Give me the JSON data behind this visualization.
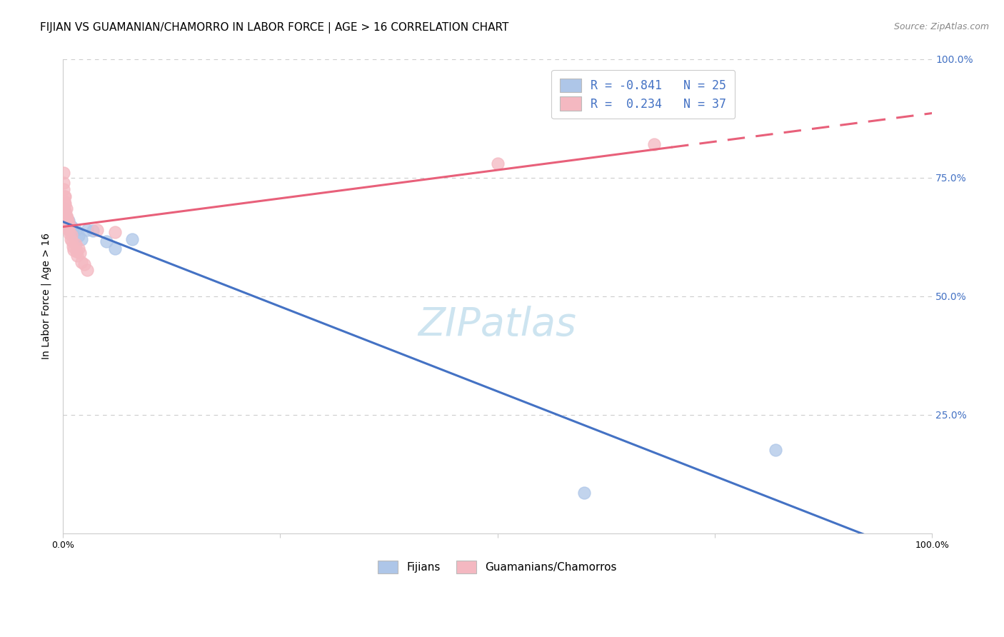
{
  "title": "FIJIAN VS GUAMANIAN/CHAMORRO IN LABOR FORCE | AGE > 16 CORRELATION CHART",
  "source": "Source: ZipAtlas.com",
  "ylabel": "In Labor Force | Age > 16",
  "watermark": "ZIPatlas",
  "fijian_color": "#aec6e8",
  "guamanian_color": "#f4b8c1",
  "fijian_line_color": "#4472c4",
  "guamanian_line_color": "#e8607a",
  "fijian_scatter": [
    [
      0.001,
      0.685
    ],
    [
      0.001,
      0.675
    ],
    [
      0.002,
      0.68
    ],
    [
      0.002,
      0.665
    ],
    [
      0.002,
      0.66
    ],
    [
      0.003,
      0.67
    ],
    [
      0.003,
      0.655
    ],
    [
      0.004,
      0.66
    ],
    [
      0.004,
      0.648
    ],
    [
      0.005,
      0.655
    ],
    [
      0.006,
      0.65
    ],
    [
      0.007,
      0.66
    ],
    [
      0.008,
      0.64
    ],
    [
      0.01,
      0.648
    ],
    [
      0.012,
      0.635
    ],
    [
      0.015,
      0.64
    ],
    [
      0.018,
      0.628
    ],
    [
      0.022,
      0.62
    ],
    [
      0.028,
      0.64
    ],
    [
      0.035,
      0.638
    ],
    [
      0.05,
      0.615
    ],
    [
      0.06,
      0.6
    ],
    [
      0.08,
      0.62
    ],
    [
      0.6,
      0.085
    ],
    [
      0.82,
      0.175
    ]
  ],
  "guamanian_scatter": [
    [
      0.001,
      0.76
    ],
    [
      0.001,
      0.74
    ],
    [
      0.001,
      0.725
    ],
    [
      0.002,
      0.71
    ],
    [
      0.002,
      0.7
    ],
    [
      0.002,
      0.695
    ],
    [
      0.002,
      0.685
    ],
    [
      0.003,
      0.71
    ],
    [
      0.003,
      0.695
    ],
    [
      0.003,
      0.68
    ],
    [
      0.003,
      0.67
    ],
    [
      0.004,
      0.685
    ],
    [
      0.004,
      0.67
    ],
    [
      0.005,
      0.665
    ],
    [
      0.005,
      0.655
    ],
    [
      0.006,
      0.66
    ],
    [
      0.006,
      0.645
    ],
    [
      0.007,
      0.64
    ],
    [
      0.008,
      0.65
    ],
    [
      0.008,
      0.632
    ],
    [
      0.009,
      0.62
    ],
    [
      0.01,
      0.63
    ],
    [
      0.011,
      0.615
    ],
    [
      0.012,
      0.605
    ],
    [
      0.013,
      0.598
    ],
    [
      0.015,
      0.61
    ],
    [
      0.016,
      0.595
    ],
    [
      0.017,
      0.585
    ],
    [
      0.018,
      0.6
    ],
    [
      0.02,
      0.592
    ],
    [
      0.022,
      0.572
    ],
    [
      0.025,
      0.568
    ],
    [
      0.028,
      0.555
    ],
    [
      0.04,
      0.64
    ],
    [
      0.06,
      0.635
    ],
    [
      0.5,
      0.78
    ],
    [
      0.68,
      0.82
    ]
  ],
  "xlim": [
    0.0,
    1.0
  ],
  "ylim": [
    0.0,
    1.0
  ],
  "grid_color": "#cccccc",
  "background_color": "#ffffff",
  "title_fontsize": 11,
  "axis_label_fontsize": 10,
  "tick_fontsize": 9,
  "source_fontsize": 9,
  "watermark_fontsize": 40,
  "watermark_color": "#cde4f0",
  "right_tick_color": "#4472c4",
  "legend_label_color": "#4472c4"
}
